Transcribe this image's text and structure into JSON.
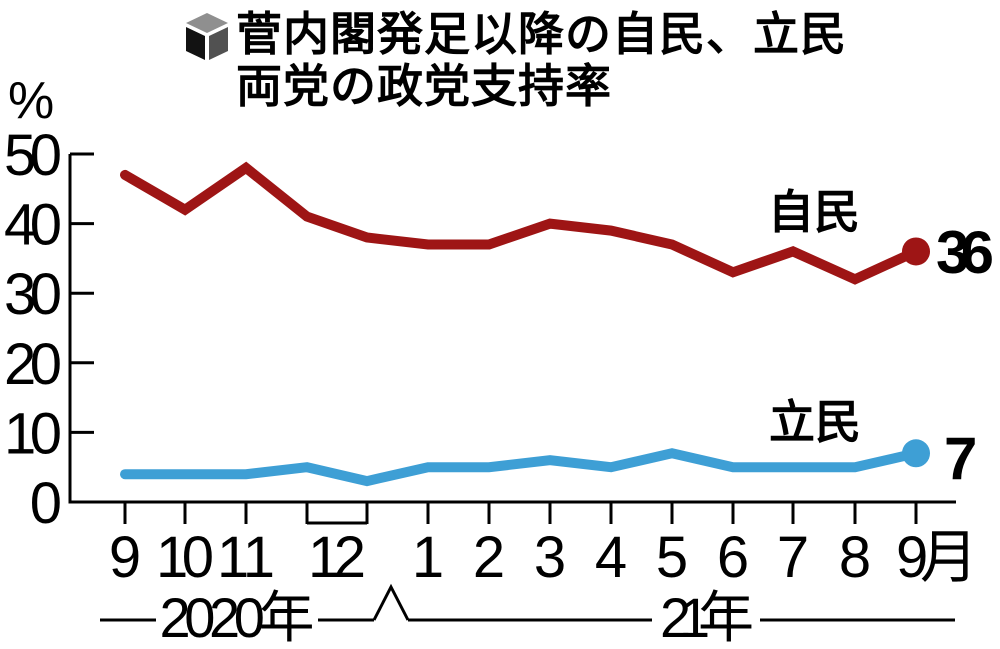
{
  "page": {
    "background": "#ffffff"
  },
  "title": {
    "icon": "cube-icon",
    "line1": "菅内閣発足以降の自民、立民",
    "line2": "両党の政党支持率"
  },
  "colors": {
    "jimin": "#9e1515",
    "rikumin": "#3e9fd5",
    "axis": "#000000",
    "text": "#000000",
    "cube_top": "#8f8f8f",
    "cube_left": "#121212",
    "cube_right": "#515151"
  },
  "chart_data": {
    "type": "line",
    "title": "菅内閣発足以降の自民、立民両党の政党支持率",
    "unit": "%",
    "ylim": [
      0,
      50
    ],
    "y_ticks": [
      0,
      10,
      20,
      30,
      40,
      50
    ],
    "grid": false,
    "x_labels": [
      {
        "text": "9",
        "tick": 0
      },
      {
        "text": "10",
        "tick": 1
      },
      {
        "text": "11",
        "tick": 2
      },
      {
        "text": "12",
        "tick": 3.5
      },
      {
        "text": "1",
        "tick": 5
      },
      {
        "text": "2",
        "tick": 6
      },
      {
        "text": "3",
        "tick": 7
      },
      {
        "text": "4",
        "tick": 8
      },
      {
        "text": "5",
        "tick": 9
      },
      {
        "text": "6",
        "tick": 10
      },
      {
        "text": "7",
        "tick": 11
      },
      {
        "text": "8",
        "tick": 12
      },
      {
        "text": "9月",
        "tick": 13
      }
    ],
    "december_bracket": {
      "from_tick": 3,
      "to_tick": 4
    },
    "era_labels": [
      "2020年",
      "21年"
    ],
    "axis_break_symbol": "∧",
    "series": [
      {
        "id": "jimin",
        "name": "自民",
        "color_key": "jimin",
        "values": [
          47,
          42,
          48,
          41,
          38,
          37,
          37,
          40,
          39,
          37,
          33,
          36,
          32,
          36
        ],
        "end_label": "36"
      },
      {
        "id": "rikumin",
        "name": "立民",
        "color_key": "rikumin",
        "values": [
          4,
          4,
          4,
          5,
          3,
          5,
          5,
          6,
          5,
          7,
          5,
          5,
          5,
          7
        ],
        "end_label": "7"
      }
    ]
  }
}
